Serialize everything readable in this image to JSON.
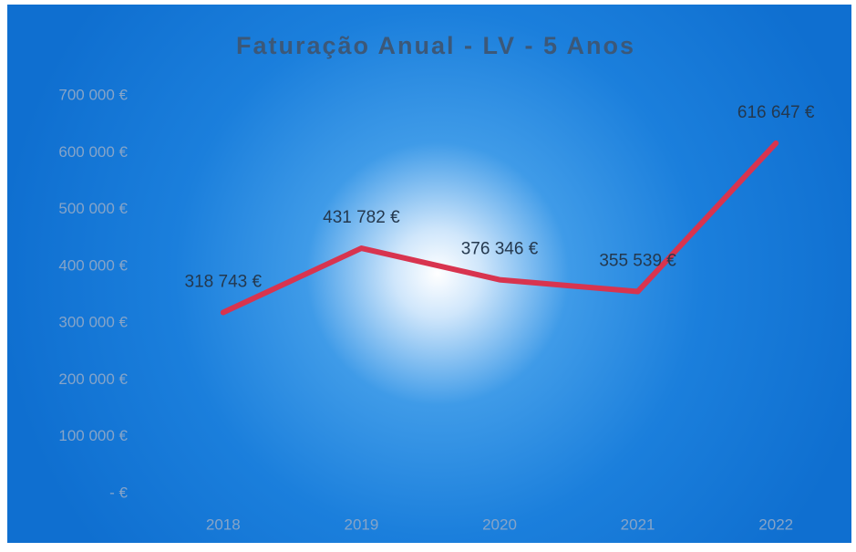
{
  "chart_data": {
    "type": "line",
    "title": "Faturação Anual - LV - 5 Anos",
    "categories": [
      "2018",
      "2019",
      "2020",
      "2021",
      "2022"
    ],
    "series": [
      {
        "name": "Faturação",
        "color": "#d8344f",
        "values": [
          318743,
          431782,
          376346,
          355539,
          616647
        ],
        "value_labels": [
          "318 743 €",
          "431 782 €",
          "376 346 €",
          "355 539 €",
          "616 647 €"
        ]
      }
    ],
    "ylim": [
      0,
      700000
    ],
    "yticks": [
      {
        "value": 0,
        "label": "- €"
      },
      {
        "value": 100000,
        "label": "100 000 €"
      },
      {
        "value": 200000,
        "label": "200 000 €"
      },
      {
        "value": 300000,
        "label": "300 000 €"
      },
      {
        "value": 400000,
        "label": "400 000 €"
      },
      {
        "value": 500000,
        "label": "500 000 €"
      },
      {
        "value": 600000,
        "label": "600 000 €"
      },
      {
        "value": 700000,
        "label": "700 000 €"
      }
    ],
    "grid": false
  }
}
